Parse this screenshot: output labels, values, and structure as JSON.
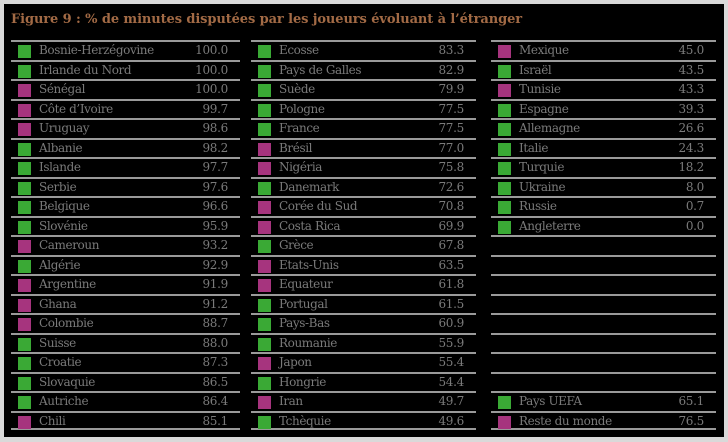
{
  "title": "Figure 9 : % de minutes disputées par les joueurs évoluant à l’étranger",
  "colors": {
    "uefa": "#3aa935",
    "rest_of_world": "#a6347e",
    "title": "#a26a45",
    "text": "#7a7a7a",
    "rule": "#9a9a9a",
    "background": "#000000"
  },
  "columns": [
    {
      "rows": [
        {
          "name": "Bosnie-Herzégovine",
          "value": "100.0",
          "group": "uefa"
        },
        {
          "name": "Irlande du Nord",
          "value": "100.0",
          "group": "uefa"
        },
        {
          "name": "Sénégal",
          "value": "100.0",
          "group": "rest_of_world"
        },
        {
          "name": "Côte d’Ivoire",
          "value": "99.7",
          "group": "rest_of_world"
        },
        {
          "name": "Uruguay",
          "value": "98.6",
          "group": "rest_of_world"
        },
        {
          "name": "Albanie",
          "value": "98.2",
          "group": "uefa"
        },
        {
          "name": "Islande",
          "value": "97.7",
          "group": "uefa"
        },
        {
          "name": "Serbie",
          "value": "97.6",
          "group": "uefa"
        },
        {
          "name": "Belgique",
          "value": "96.6",
          "group": "uefa"
        },
        {
          "name": "Slovénie",
          "value": "95.9",
          "group": "uefa"
        },
        {
          "name": "Cameroun",
          "value": "93.2",
          "group": "rest_of_world"
        },
        {
          "name": "Algérie",
          "value": "92.9",
          "group": "uefa"
        },
        {
          "name": "Argentine",
          "value": "91.9",
          "group": "rest_of_world"
        },
        {
          "name": "Ghana",
          "value": "91.2",
          "group": "rest_of_world"
        },
        {
          "name": "Colombie",
          "value": "88.7",
          "group": "rest_of_world"
        },
        {
          "name": "Suisse",
          "value": "88.0",
          "group": "uefa"
        },
        {
          "name": "Croatie",
          "value": "87.3",
          "group": "uefa"
        },
        {
          "name": "Slovaquie",
          "value": "86.5",
          "group": "uefa"
        },
        {
          "name": "Autriche",
          "value": "86.4",
          "group": "uefa"
        },
        {
          "name": "Chili",
          "value": "85.1",
          "group": "rest_of_world"
        }
      ]
    },
    {
      "rows": [
        {
          "name": "Ecosse",
          "value": "83.3",
          "group": "uefa"
        },
        {
          "name": "Pays de Galles",
          "value": "82.9",
          "group": "uefa"
        },
        {
          "name": "Suède",
          "value": "79.9",
          "group": "uefa"
        },
        {
          "name": "Pologne",
          "value": "77.5",
          "group": "uefa"
        },
        {
          "name": "France",
          "value": "77.5",
          "group": "uefa"
        },
        {
          "name": "Brésil",
          "value": "77.0",
          "group": "rest_of_world"
        },
        {
          "name": "Nigéria",
          "value": "75.8",
          "group": "rest_of_world"
        },
        {
          "name": "Danemark",
          "value": "72.6",
          "group": "uefa"
        },
        {
          "name": "Corée du Sud",
          "value": "70.8",
          "group": "rest_of_world"
        },
        {
          "name": "Costa Rica",
          "value": "69.9",
          "group": "rest_of_world"
        },
        {
          "name": "Grèce",
          "value": "67.8",
          "group": "uefa"
        },
        {
          "name": "Etats-Unis",
          "value": "63.5",
          "group": "rest_of_world"
        },
        {
          "name": "Equateur",
          "value": "61.8",
          "group": "rest_of_world"
        },
        {
          "name": "Portugal",
          "value": "61.5",
          "group": "uefa"
        },
        {
          "name": "Pays-Bas",
          "value": "60.9",
          "group": "uefa"
        },
        {
          "name": "Roumanie",
          "value": "55.9",
          "group": "uefa"
        },
        {
          "name": "Japon",
          "value": "55.4",
          "group": "rest_of_world"
        },
        {
          "name": "Hongrie",
          "value": "54.4",
          "group": "uefa"
        },
        {
          "name": "Iran",
          "value": "49.7",
          "group": "rest_of_world"
        },
        {
          "name": "Tchèquie",
          "value": "49.6",
          "group": "uefa"
        }
      ]
    },
    {
      "rows": [
        {
          "name": "Mexique",
          "value": "45.0",
          "group": "rest_of_world"
        },
        {
          "name": "Israël",
          "value": "43.5",
          "group": "uefa"
        },
        {
          "name": "Tunisie",
          "value": "43.3",
          "group": "rest_of_world"
        },
        {
          "name": "Espagne",
          "value": "39.3",
          "group": "uefa"
        },
        {
          "name": "Allemagne",
          "value": "26.6",
          "group": "uefa"
        },
        {
          "name": "Italie",
          "value": "24.3",
          "group": "uefa"
        },
        {
          "name": "Turquie",
          "value": "18.2",
          "group": "uefa"
        },
        {
          "name": "Ukraine",
          "value": "8.0",
          "group": "uefa"
        },
        {
          "name": "Russie",
          "value": "0.7",
          "group": "uefa"
        },
        {
          "name": "Angleterre",
          "value": "0.0",
          "group": "uefa"
        },
        {
          "name": "",
          "value": "",
          "group": ""
        },
        {
          "name": "",
          "value": "",
          "group": ""
        },
        {
          "name": "",
          "value": "",
          "group": ""
        },
        {
          "name": "",
          "value": "",
          "group": ""
        },
        {
          "name": "",
          "value": "",
          "group": ""
        },
        {
          "name": "",
          "value": "",
          "group": ""
        },
        {
          "name": "",
          "value": "",
          "group": ""
        },
        {
          "name": "",
          "value": "",
          "group": ""
        },
        {
          "name": "Pays UEFA",
          "value": "65.1",
          "group": "uefa"
        },
        {
          "name": "Reste du monde",
          "value": "76.5",
          "group": "rest_of_world"
        }
      ]
    }
  ],
  "chart_data": {
    "type": "table",
    "title": "Figure 9 : % de minutes disputées par les joueurs évoluant à l’étranger",
    "legend": {
      "uefa": "green square (Pays UEFA)",
      "rest_of_world": "magenta square (Reste du monde)"
    },
    "categories": [
      "Bosnie-Herzégovine",
      "Irlande du Nord",
      "Sénégal",
      "Côte d’Ivoire",
      "Uruguay",
      "Albanie",
      "Islande",
      "Serbie",
      "Belgique",
      "Slovénie",
      "Cameroun",
      "Algérie",
      "Argentine",
      "Ghana",
      "Colombie",
      "Suisse",
      "Croatie",
      "Slovaquie",
      "Autriche",
      "Chili",
      "Ecosse",
      "Pays de Galles",
      "Suède",
      "Pologne",
      "France",
      "Brésil",
      "Nigéria",
      "Danemark",
      "Corée du Sud",
      "Costa Rica",
      "Grèce",
      "Etats-Unis",
      "Equateur",
      "Portugal",
      "Pays-Bas",
      "Roumanie",
      "Japon",
      "Hongrie",
      "Iran",
      "Tchèquie",
      "Mexique",
      "Israël",
      "Tunisie",
      "Espagne",
      "Allemagne",
      "Italie",
      "Turquie",
      "Ukraine",
      "Russie",
      "Angleterre"
    ],
    "values": [
      100.0,
      100.0,
      100.0,
      99.7,
      98.6,
      98.2,
      97.7,
      97.6,
      96.6,
      95.9,
      93.2,
      92.9,
      91.9,
      91.2,
      88.7,
      88.0,
      87.3,
      86.5,
      86.4,
      85.1,
      83.3,
      82.9,
      79.9,
      77.5,
      77.5,
      77.0,
      75.8,
      72.6,
      70.8,
      69.9,
      67.8,
      63.5,
      61.8,
      61.5,
      60.9,
      55.9,
      55.4,
      54.4,
      49.7,
      49.6,
      45.0,
      43.5,
      43.3,
      39.3,
      26.6,
      24.3,
      18.2,
      8.0,
      0.7,
      0.0
    ],
    "summary": [
      {
        "name": "Pays UEFA",
        "value": 65.1
      },
      {
        "name": "Reste du monde",
        "value": 76.5
      }
    ]
  }
}
